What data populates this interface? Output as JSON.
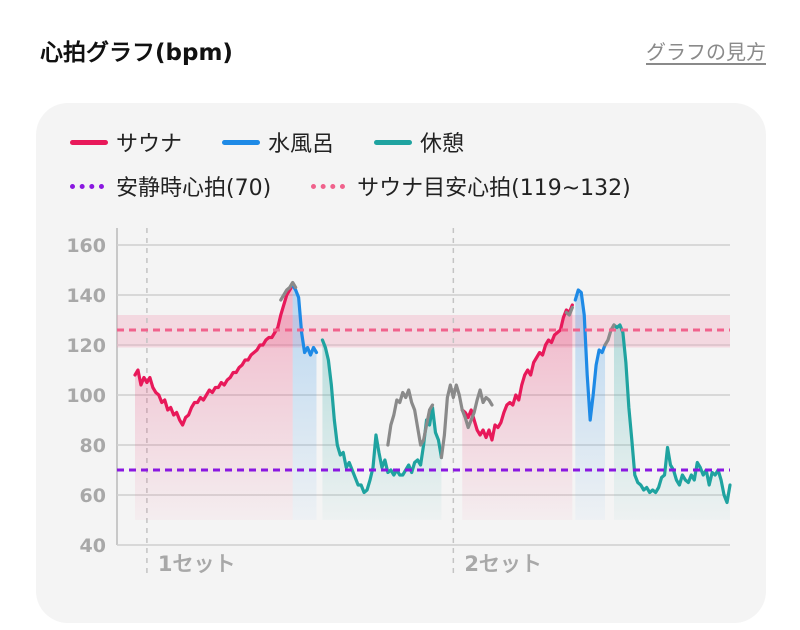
{
  "header": {
    "title": "心拍グラフ(bpm)",
    "link_label": "グラフの見方"
  },
  "legend": {
    "sauna": {
      "label": "サウナ",
      "color": "#e8195a"
    },
    "water": {
      "label": "水風呂",
      "color": "#1e8ae6"
    },
    "rest": {
      "label": "休憩",
      "color": "#1fa3a0"
    },
    "resting_hr": {
      "label": "安静時心拍(70)",
      "color": "#8a18e0"
    },
    "target_hr": {
      "label": "サウナ目安心拍(119~132)",
      "color": "#f0628c"
    }
  },
  "chart_data": {
    "type": "line",
    "ylabel": "",
    "xlabel": "",
    "ylim": [
      40,
      160
    ],
    "xlim": [
      0,
      100
    ],
    "yticks": [
      "160",
      "140",
      "120",
      "100",
      "80",
      "60",
      "40"
    ],
    "grid": true,
    "resting_hr": 70,
    "target_band": [
      119,
      132
    ],
    "target_line": 126,
    "sets": [
      {
        "label": "1セット",
        "x": 2
      },
      {
        "label": "2セット",
        "x": 53.5
      }
    ],
    "gray_color": "#8a8a8a",
    "series": [
      {
        "name": "サウナ",
        "color": "#e8195a",
        "points": [
          [
            0,
            108
          ],
          [
            0.5,
            110
          ],
          [
            1,
            104
          ],
          [
            1.5,
            107
          ],
          [
            2,
            105
          ],
          [
            2.5,
            107
          ],
          [
            3,
            103
          ],
          [
            3.5,
            101
          ],
          [
            4,
            100
          ],
          [
            4.5,
            97
          ],
          [
            5,
            98
          ],
          [
            5.5,
            94
          ],
          [
            6,
            95
          ],
          [
            6.5,
            92
          ],
          [
            7,
            93
          ],
          [
            7.5,
            90
          ],
          [
            8,
            88
          ],
          [
            8.5,
            91
          ],
          [
            9,
            92
          ],
          [
            9.5,
            95
          ],
          [
            10,
            97
          ],
          [
            10.5,
            97
          ],
          [
            11,
            99
          ],
          [
            11.5,
            98
          ],
          [
            12,
            100
          ],
          [
            12.5,
            102
          ],
          [
            13,
            101
          ],
          [
            13.5,
            103
          ],
          [
            14,
            103
          ],
          [
            14.5,
            105
          ],
          [
            15,
            104
          ],
          [
            15.5,
            106
          ],
          [
            16,
            107
          ],
          [
            16.5,
            109
          ],
          [
            17,
            109
          ],
          [
            17.5,
            111
          ],
          [
            18,
            112
          ],
          [
            18.5,
            114
          ],
          [
            19,
            114
          ],
          [
            19.5,
            116
          ],
          [
            20,
            117
          ],
          [
            20.5,
            118
          ],
          [
            21,
            120
          ],
          [
            21.5,
            120
          ],
          [
            22,
            122
          ],
          [
            22.5,
            123
          ],
          [
            23,
            123
          ],
          [
            23.5,
            125
          ],
          [
            24,
            127
          ],
          [
            24.5,
            132
          ],
          [
            25,
            136
          ],
          [
            25.5,
            140
          ],
          [
            26,
            142
          ],
          [
            26.5,
            144
          ]
        ]
      },
      {
        "name": "水風呂",
        "color": "#1e8ae6",
        "points": [
          [
            26.5,
            144
          ],
          [
            27,
            142
          ],
          [
            27.5,
            139
          ],
          [
            28,
            125
          ],
          [
            28.5,
            117
          ],
          [
            29,
            119
          ],
          [
            29.5,
            116
          ],
          [
            30,
            119
          ],
          [
            30.5,
            117
          ]
        ]
      },
      {
        "name": "休憩",
        "color": "#1fa3a0",
        "points": [
          [
            31.5,
            122
          ],
          [
            32,
            119
          ],
          [
            32.5,
            114
          ],
          [
            33,
            104
          ],
          [
            33.5,
            90
          ],
          [
            34,
            80
          ],
          [
            34.5,
            76
          ],
          [
            35,
            77
          ],
          [
            35.5,
            71
          ],
          [
            36,
            73
          ],
          [
            36.5,
            70
          ],
          [
            37,
            67
          ],
          [
            37.5,
            64
          ],
          [
            38,
            64
          ],
          [
            38.5,
            61
          ],
          [
            39,
            62
          ],
          [
            39.5,
            66
          ],
          [
            40,
            71
          ],
          [
            40.5,
            84
          ],
          [
            41,
            77
          ],
          [
            41.5,
            71
          ],
          [
            42,
            74
          ],
          [
            42.5,
            69
          ],
          [
            43,
            70
          ],
          [
            43.5,
            68
          ],
          [
            44,
            70
          ],
          [
            44.5,
            68
          ],
          [
            45,
            68
          ],
          [
            45.5,
            70
          ],
          [
            46,
            72
          ],
          [
            46.5,
            69
          ],
          [
            47,
            73
          ],
          [
            47.5,
            74
          ],
          [
            48,
            72
          ],
          [
            48.5,
            80
          ],
          [
            49,
            90
          ],
          [
            49.5,
            88
          ],
          [
            50,
            95
          ],
          [
            50.5,
            85
          ],
          [
            51,
            82
          ],
          [
            51.5,
            75
          ]
        ]
      },
      {
        "name": "サウナ",
        "color": "#e8195a",
        "points": [
          [
            55,
            94
          ],
          [
            55.5,
            93
          ],
          [
            56,
            91
          ],
          [
            56.5,
            94
          ],
          [
            57,
            90
          ],
          [
            57.5,
            86
          ],
          [
            58,
            84
          ],
          [
            58.5,
            86
          ],
          [
            59,
            83
          ],
          [
            59.5,
            86
          ],
          [
            60,
            82
          ],
          [
            60.5,
            88
          ],
          [
            61,
            87
          ],
          [
            61.5,
            89
          ],
          [
            62,
            93
          ],
          [
            62.5,
            96
          ],
          [
            63,
            97
          ],
          [
            63.5,
            96
          ],
          [
            64,
            100
          ],
          [
            64.5,
            98
          ],
          [
            65,
            104
          ],
          [
            65.5,
            108
          ],
          [
            66,
            110
          ],
          [
            66.5,
            108
          ],
          [
            67,
            113
          ],
          [
            67.5,
            115
          ],
          [
            68,
            117
          ],
          [
            68.5,
            116
          ],
          [
            69,
            120
          ],
          [
            69.5,
            122
          ],
          [
            70,
            121
          ],
          [
            70.5,
            124
          ],
          [
            71,
            125
          ],
          [
            71.5,
            126
          ],
          [
            72,
            131
          ],
          [
            72.5,
            134
          ],
          [
            73,
            133
          ],
          [
            73.5,
            136
          ]
        ]
      },
      {
        "name": "水風呂",
        "color": "#1e8ae6",
        "points": [
          [
            74,
            138
          ],
          [
            74.5,
            142
          ],
          [
            75,
            141
          ],
          [
            75.5,
            132
          ],
          [
            76,
            108
          ],
          [
            76.5,
            90
          ],
          [
            77,
            100
          ],
          [
            77.5,
            112
          ],
          [
            78,
            118
          ],
          [
            78.5,
            117
          ],
          [
            79,
            120
          ]
        ]
      },
      {
        "name": "休憩",
        "color": "#1fa3a0",
        "points": [
          [
            80.5,
            128
          ],
          [
            81,
            127
          ],
          [
            81.5,
            128
          ],
          [
            82,
            125
          ],
          [
            82.5,
            113
          ],
          [
            83,
            95
          ],
          [
            83.5,
            82
          ],
          [
            84,
            68
          ],
          [
            84.5,
            65
          ],
          [
            85,
            64
          ],
          [
            85.5,
            62
          ],
          [
            86,
            63
          ],
          [
            86.5,
            61
          ],
          [
            87,
            62
          ],
          [
            87.5,
            61
          ],
          [
            88,
            63
          ],
          [
            88.5,
            67
          ],
          [
            89,
            68
          ],
          [
            89.5,
            79
          ],
          [
            90,
            72
          ],
          [
            90.5,
            70
          ],
          [
            91,
            66
          ],
          [
            91.5,
            64
          ],
          [
            92,
            68
          ],
          [
            92.5,
            66
          ],
          [
            93,
            65
          ],
          [
            93.5,
            68
          ],
          [
            94,
            66
          ],
          [
            94.5,
            73
          ],
          [
            95,
            71
          ],
          [
            95.5,
            68
          ],
          [
            96,
            70
          ],
          [
            96.5,
            64
          ],
          [
            97,
            69
          ],
          [
            97.5,
            68
          ],
          [
            98,
            70
          ],
          [
            98.5,
            66
          ],
          [
            99,
            60
          ],
          [
            99.5,
            57
          ],
          [
            100,
            64
          ]
        ]
      },
      {
        "name": "",
        "color": "#8a8a8a",
        "points": [
          [
            24.5,
            138
          ],
          [
            25,
            140
          ],
          [
            25.5,
            142
          ],
          [
            26,
            143
          ],
          [
            26.5,
            145
          ],
          [
            27,
            143
          ]
        ]
      },
      {
        "name": "",
        "color": "#8a8a8a",
        "points": [
          [
            51.5,
            75
          ],
          [
            52,
            84
          ],
          [
            52.5,
            99
          ],
          [
            53,
            104
          ],
          [
            53.5,
            99
          ],
          [
            54,
            104
          ],
          [
            54.5,
            100
          ],
          [
            55,
            94
          ],
          [
            55.5,
            91
          ],
          [
            56,
            87
          ],
          [
            56.5,
            90
          ],
          [
            57,
            93
          ],
          [
            57.5,
            98
          ],
          [
            58,
            102
          ],
          [
            58.5,
            97
          ],
          [
            59,
            99
          ],
          [
            59.5,
            98
          ],
          [
            60,
            96
          ]
        ]
      },
      {
        "name": "",
        "color": "#8a8a8a",
        "points": [
          [
            42.5,
            80
          ],
          [
            43,
            88
          ],
          [
            43.5,
            92
          ],
          [
            44,
            98
          ],
          [
            44.5,
            97
          ],
          [
            45,
            101
          ],
          [
            45.5,
            99
          ],
          [
            46,
            102
          ],
          [
            46.5,
            97
          ],
          [
            47,
            94
          ],
          [
            47.5,
            87
          ],
          [
            48,
            80
          ],
          [
            48.5,
            82
          ],
          [
            49,
            88
          ],
          [
            49.5,
            94
          ],
          [
            50,
            96
          ]
        ]
      },
      {
        "name": "",
        "color": "#8a8a8a",
        "points": [
          [
            72.5,
            133
          ],
          [
            73,
            132
          ],
          [
            73.5,
            135
          ]
        ]
      },
      {
        "name": "",
        "color": "#8a8a8a",
        "points": [
          [
            79,
            120
          ],
          [
            79.5,
            122
          ],
          [
            80,
            126
          ],
          [
            80.5,
            128
          ]
        ]
      }
    ]
  }
}
